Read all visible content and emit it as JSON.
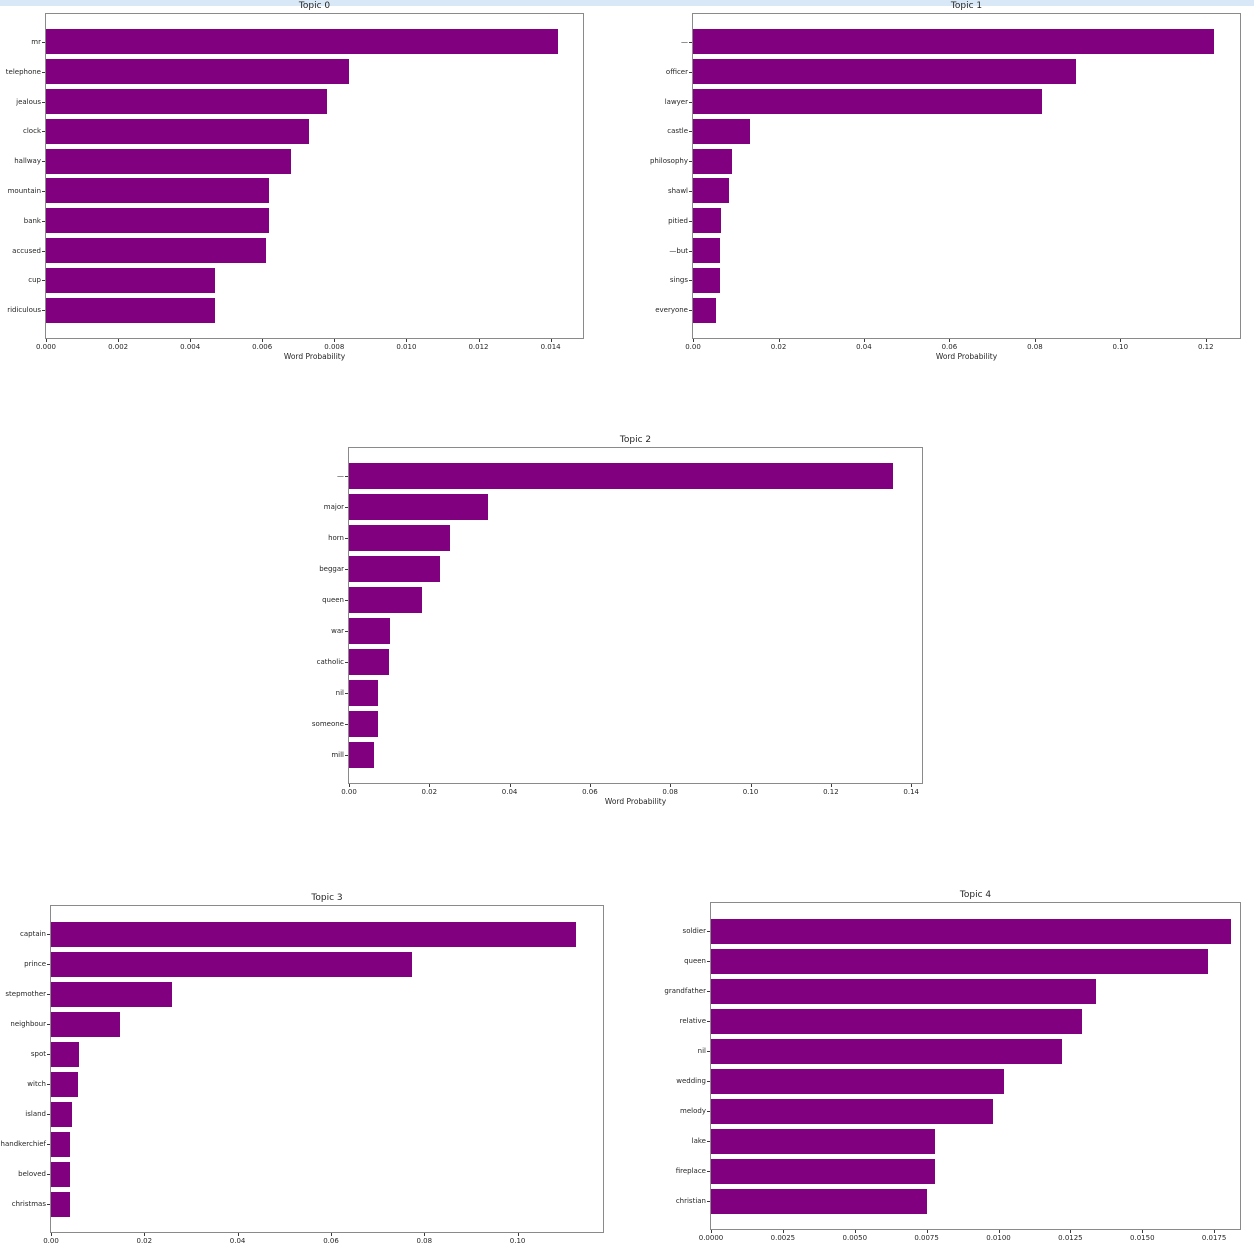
{
  "page": {
    "background_color": "#ffffff",
    "top_strip_color": "#d9e8f6",
    "text_color": "#262626",
    "axis_color": "#8a8a8a",
    "bar_color": "#800080"
  },
  "chart_data": [
    {
      "type": "bar",
      "orientation": "horizontal",
      "title": "Topic 0",
      "xlabel": "Word Probability",
      "categories": [
        "mr",
        "telephone",
        "jealous",
        "clock",
        "hallway",
        "mountain",
        "bank",
        "accused",
        "cup",
        "ridiculous"
      ],
      "values": [
        0.0142,
        0.0084,
        0.0078,
        0.0073,
        0.0068,
        0.0062,
        0.0062,
        0.0061,
        0.0047,
        0.0047
      ],
      "xlim": [
        0,
        0.0149
      ],
      "xtick_values": [
        0.0,
        0.002,
        0.004,
        0.006,
        0.008,
        0.01,
        0.012,
        0.014
      ],
      "xtick_labels": [
        "0.000",
        "0.002",
        "0.004",
        "0.006",
        "0.008",
        "0.010",
        "0.012",
        "0.014"
      ],
      "bar_color": "#800080",
      "grid": false,
      "legend": null
    },
    {
      "type": "bar",
      "orientation": "horizontal",
      "title": "Topic 1",
      "xlabel": "Word Probability",
      "categories": [
        "—",
        "officer",
        "lawyer",
        "castle",
        "philosophy",
        "shawl",
        "pitied",
        "—but",
        "sings",
        "everyone"
      ],
      "values": [
        0.122,
        0.0896,
        0.0817,
        0.0134,
        0.009,
        0.0083,
        0.0065,
        0.0064,
        0.0063,
        0.0054
      ],
      "xlim": [
        0,
        0.128
      ],
      "xtick_values": [
        0.0,
        0.02,
        0.04,
        0.06,
        0.08,
        0.1,
        0.12
      ],
      "xtick_labels": [
        "0.00",
        "0.02",
        "0.04",
        "0.06",
        "0.08",
        "0.10",
        "0.12"
      ],
      "bar_color": "#800080",
      "grid": false,
      "legend": null
    },
    {
      "type": "bar",
      "orientation": "horizontal",
      "title": "Topic 2",
      "xlabel": "Word Probability",
      "categories": [
        "—",
        "major",
        "horn",
        "beggar",
        "queen",
        "war",
        "catholic",
        "nil",
        "someone",
        "mill"
      ],
      "values": [
        0.1355,
        0.0347,
        0.0252,
        0.0227,
        0.0182,
        0.0101,
        0.01,
        0.0072,
        0.0072,
        0.0061
      ],
      "xlim": [
        0,
        0.1427
      ],
      "xtick_values": [
        0.0,
        0.02,
        0.04,
        0.06,
        0.08,
        0.1,
        0.12,
        0.14
      ],
      "xtick_labels": [
        "0.00",
        "0.02",
        "0.04",
        "0.06",
        "0.08",
        "0.10",
        "0.12",
        "0.14"
      ],
      "bar_color": "#800080",
      "grid": false,
      "legend": null
    },
    {
      "type": "bar",
      "orientation": "horizontal",
      "title": "Topic 3",
      "xlabel": null,
      "categories": [
        "captain",
        "prince",
        "stepmother",
        "neighbour",
        "spot",
        "witch",
        "island",
        "handkerchief",
        "beloved",
        "christmas"
      ],
      "values": [
        0.1126,
        0.0774,
        0.0259,
        0.0147,
        0.006,
        0.0058,
        0.0045,
        0.0041,
        0.004,
        0.004
      ],
      "xlim": [
        0,
        0.1183
      ],
      "xtick_values": [
        0.0,
        0.02,
        0.04,
        0.06,
        0.08,
        0.1
      ],
      "xtick_labels": [
        "0.00",
        "0.02",
        "0.04",
        "0.06",
        "0.08",
        "0.10"
      ],
      "bar_color": "#800080",
      "grid": false,
      "legend": null
    },
    {
      "type": "bar",
      "orientation": "horizontal",
      "title": "Topic 4",
      "xlabel": null,
      "categories": [
        "soldier",
        "queen",
        "grandfather",
        "relative",
        "nil",
        "wedding",
        "melody",
        "lake",
        "fireplace",
        "christian"
      ],
      "values": [
        0.0181,
        0.0173,
        0.0134,
        0.0129,
        0.0122,
        0.0102,
        0.0098,
        0.0078,
        0.0078,
        0.0075
      ],
      "xlim": [
        0,
        0.0184
      ],
      "xtick_values": [
        0.0,
        0.0025,
        0.005,
        0.0075,
        0.01,
        0.0125,
        0.015,
        0.0175
      ],
      "xtick_labels": [
        "0.0000",
        "0.0025",
        "0.0050",
        "0.0075",
        "0.0100",
        "0.0125",
        "0.0150",
        "0.0175"
      ],
      "bar_color": "#800080",
      "grid": false,
      "legend": null
    }
  ]
}
